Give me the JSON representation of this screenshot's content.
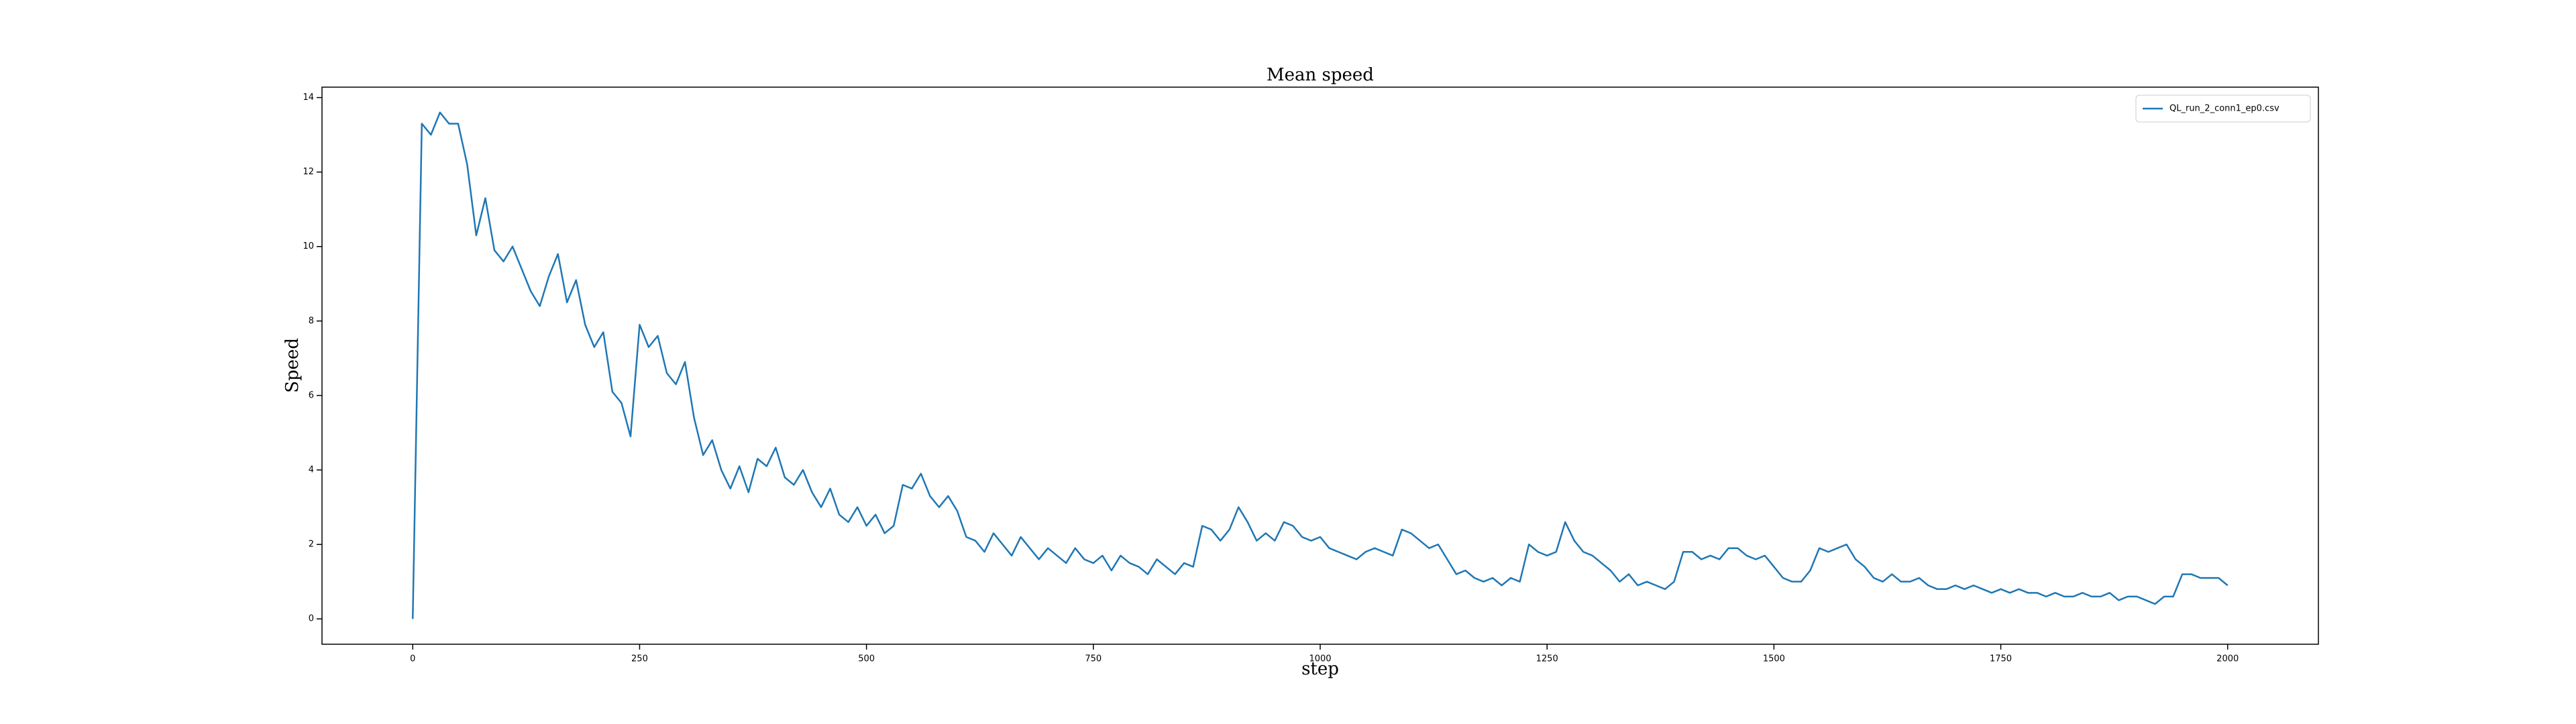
{
  "chart_data": {
    "type": "line",
    "title": "Mean speed",
    "x_label": "step",
    "y_label": "Speed",
    "x": [
      0,
      10,
      20,
      30,
      40,
      50,
      60,
      70,
      80,
      90,
      100,
      110,
      120,
      130,
      140,
      150,
      160,
      170,
      180,
      190,
      200,
      210,
      220,
      230,
      240,
      250,
      260,
      270,
      280,
      290,
      300,
      310,
      320,
      330,
      340,
      350,
      360,
      370,
      380,
      390,
      400,
      410,
      420,
      430,
      440,
      450,
      460,
      470,
      480,
      490,
      500,
      510,
      520,
      530,
      540,
      550,
      560,
      570,
      580,
      590,
      600,
      610,
      620,
      630,
      640,
      650,
      660,
      670,
      680,
      690,
      700,
      710,
      720,
      730,
      740,
      750,
      760,
      770,
      780,
      790,
      800,
      810,
      820,
      830,
      840,
      850,
      860,
      870,
      880,
      890,
      900,
      910,
      920,
      930,
      940,
      950,
      960,
      970,
      980,
      990,
      1000,
      1010,
      1020,
      1030,
      1040,
      1050,
      1060,
      1070,
      1080,
      1090,
      1100,
      1110,
      1120,
      1130,
      1140,
      1150,
      1160,
      1170,
      1180,
      1190,
      1200,
      1210,
      1220,
      1230,
      1240,
      1250,
      1260,
      1270,
      1280,
      1290,
      1300,
      1310,
      1320,
      1330,
      1340,
      1350,
      1360,
      1370,
      1380,
      1390,
      1400,
      1410,
      1420,
      1430,
      1440,
      1450,
      1460,
      1470,
      1480,
      1490,
      1500,
      1510,
      1520,
      1530,
      1540,
      1550,
      1560,
      1570,
      1580,
      1590,
      1600,
      1610,
      1620,
      1630,
      1640,
      1650,
      1660,
      1670,
      1680,
      1690,
      1700,
      1710,
      1720,
      1730,
      1740,
      1750,
      1760,
      1770,
      1780,
      1790,
      1800,
      1810,
      1820,
      1830,
      1840,
      1850,
      1860,
      1870,
      1880,
      1890,
      1900,
      1910,
      1920,
      1930,
      1940,
      1950,
      1960,
      1970,
      1980,
      1990,
      2000
    ],
    "series": [
      {
        "name": "QL_run_2_conn1_ep0.csv",
        "color": "#1f77b4",
        "values": [
          0,
          13.3,
          13.0,
          13.6,
          13.3,
          13.3,
          12.2,
          10.3,
          11.3,
          9.9,
          9.6,
          10.0,
          9.4,
          8.8,
          8.4,
          9.2,
          9.8,
          8.5,
          9.1,
          7.9,
          7.3,
          7.7,
          6.1,
          5.8,
          4.9,
          7.9,
          7.3,
          7.6,
          6.6,
          6.3,
          6.9,
          5.4,
          4.4,
          4.8,
          4.0,
          3.5,
          4.1,
          3.4,
          4.3,
          4.1,
          4.6,
          3.8,
          3.6,
          4.0,
          3.4,
          3.0,
          3.5,
          2.8,
          2.6,
          3.0,
          2.5,
          2.8,
          2.3,
          2.5,
          3.6,
          3.5,
          3.9,
          3.3,
          3.0,
          3.3,
          2.9,
          2.2,
          2.1,
          1.8,
          2.3,
          2.0,
          1.7,
          2.2,
          1.9,
          1.6,
          1.9,
          1.7,
          1.5,
          1.9,
          1.6,
          1.5,
          1.7,
          1.3,
          1.7,
          1.5,
          1.4,
          1.2,
          1.6,
          1.4,
          1.2,
          1.5,
          1.4,
          2.5,
          2.4,
          2.1,
          2.4,
          3.0,
          2.6,
          2.1,
          2.3,
          2.1,
          2.6,
          2.5,
          2.2,
          2.1,
          2.2,
          1.9,
          1.8,
          1.7,
          1.6,
          1.8,
          1.9,
          1.8,
          1.7,
          2.4,
          2.3,
          2.1,
          1.9,
          2.0,
          1.6,
          1.2,
          1.3,
          1.1,
          1.0,
          1.1,
          0.9,
          1.1,
          1.0,
          2.0,
          1.8,
          1.7,
          1.8,
          2.6,
          2.1,
          1.8,
          1.7,
          1.5,
          1.3,
          1.0,
          1.2,
          0.9,
          1.0,
          0.9,
          0.8,
          1.0,
          1.8,
          1.8,
          1.6,
          1.7,
          1.6,
          1.9,
          1.9,
          1.7,
          1.6,
          1.7,
          1.4,
          1.1,
          1.0,
          1.0,
          1.3,
          1.9,
          1.8,
          1.9,
          2.0,
          1.6,
          1.4,
          1.1,
          1.0,
          1.2,
          1.0,
          1.0,
          1.1,
          0.9,
          0.8,
          0.8,
          0.9,
          0.8,
          0.9,
          0.8,
          0.7,
          0.8,
          0.7,
          0.8,
          0.7,
          0.7,
          0.6,
          0.7,
          0.6,
          0.6,
          0.7,
          0.6,
          0.6,
          0.7,
          0.5,
          0.6,
          0.6,
          0.5,
          0.4,
          0.6,
          0.6,
          1.2,
          1.2,
          1.1,
          1.1,
          1.1,
          0.9
        ]
      }
    ],
    "xlim": [
      -100,
      2100
    ],
    "ylim": [
      -0.68,
      14.28
    ],
    "xticks": [
      0,
      250,
      500,
      750,
      1000,
      1250,
      1500,
      1750,
      2000
    ],
    "yticks": [
      0,
      2,
      4,
      6,
      8,
      10,
      12,
      14
    ],
    "legend": "upper right",
    "title_color": "#8b0000"
  }
}
